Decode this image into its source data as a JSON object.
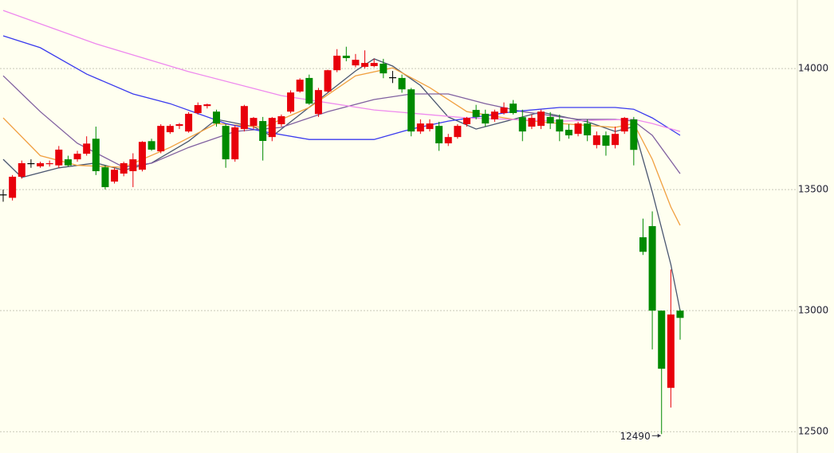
{
  "chart_data": {
    "type": "candlestick",
    "open": [
      13480,
      13466,
      13553,
      13609,
      13596,
      13605,
      13600,
      13625,
      13625,
      13648,
      13710,
      13592,
      13533,
      13566,
      13576,
      13582,
      13700,
      13658,
      13737,
      13763,
      13740,
      13816,
      13845,
      13822,
      13763,
      13625,
      13750,
      13763,
      13783,
      13717,
      13770,
      13822,
      13905,
      13961,
      13812,
      13905,
      13993,
      14053,
      14013,
      14007,
      14010,
      14020,
      13964,
      13961,
      13914,
      13740,
      13750,
      13763,
      13691,
      13717,
      13770,
      13829,
      13813,
      13790,
      13816,
      13855,
      13799,
      13760,
      13763,
      13800,
      13790,
      13747,
      13730,
      13773,
      13684,
      13724,
      13684,
      13740,
      13790,
      13303,
      13349,
      13000,
      12681,
      13000
    ],
    "high": [
      13500,
      13560,
      13620,
      13625,
      13615,
      13620,
      13680,
      13640,
      13660,
      13720,
      13760,
      13600,
      13590,
      13615,
      13650,
      13700,
      13710,
      13770,
      13770,
      13775,
      13820,
      13860,
      13855,
      13830,
      13770,
      13765,
      13850,
      13800,
      13800,
      13800,
      13810,
      13910,
      13960,
      13975,
      13920,
      13995,
      14080,
      14090,
      14060,
      14075,
      14040,
      14040,
      13990,
      13975,
      13920,
      13790,
      13790,
      13780,
      13730,
      13770,
      13800,
      13850,
      13830,
      13830,
      13860,
      13870,
      13830,
      13810,
      13830,
      13820,
      13810,
      13770,
      13780,
      13790,
      13740,
      13740,
      13760,
      13800,
      13800,
      13380,
      13410,
      13000,
      13170,
      13005
    ],
    "low": [
      13450,
      13455,
      13545,
      13590,
      13590,
      13595,
      13590,
      13595,
      13615,
      13640,
      13560,
      13500,
      13525,
      13555,
      13510,
      13575,
      13660,
      13650,
      13730,
      13750,
      13735,
      13810,
      13835,
      13760,
      13590,
      13615,
      13740,
      13750,
      13620,
      13700,
      13760,
      13815,
      13900,
      13850,
      13800,
      13900,
      13985,
      14030,
      14005,
      14000,
      14005,
      13960,
      13940,
      13900,
      13720,
      13730,
      13740,
      13660,
      13680,
      13710,
      13760,
      13790,
      13760,
      13780,
      13810,
      13810,
      13700,
      13750,
      13750,
      13750,
      13700,
      13710,
      13720,
      13700,
      13670,
      13640,
      13670,
      13730,
      13600,
      13230,
      12840,
      12490,
      12600,
      12880
    ],
    "close": [
      13480,
      13553,
      13609,
      13609,
      13609,
      13609,
      13665,
      13600,
      13648,
      13690,
      13576,
      13510,
      13582,
      13609,
      13625,
      13697,
      13665,
      13763,
      13763,
      13770,
      13813,
      13849,
      13852,
      13773,
      13625,
      13757,
      13845,
      13796,
      13701,
      13796,
      13803,
      13901,
      13954,
      13855,
      13911,
      13993,
      14053,
      14043,
      14036,
      14023,
      14023,
      13980,
      13964,
      13914,
      13740,
      13773,
      13773,
      13691,
      13717,
      13763,
      13796,
      13800,
      13773,
      13822,
      13839,
      13816,
      13740,
      13796,
      13822,
      13773,
      13740,
      13724,
      13773,
      13724,
      13724,
      13681,
      13730,
      13796,
      13664,
      13243,
      13000,
      12760,
      12984,
      12970
    ],
    "up_color": "#e8000b",
    "down_color": "#008a00",
    "flat_color": "#000000",
    "series": [
      {
        "color": "#4a5670",
        "x": [
          0,
          2,
          6,
          10,
          13,
          16,
          20,
          23,
          27,
          29,
          31,
          35,
          38,
          40,
          42,
          45,
          48,
          51,
          55,
          58,
          63,
          66,
          68,
          70,
          72,
          73
        ],
        "values": [
          13625,
          13550,
          13590,
          13610,
          13580,
          13610,
          13700,
          13790,
          13760,
          13720,
          13780,
          13900,
          13990,
          14040,
          14010,
          13930,
          13800,
          13750,
          13790,
          13820,
          13780,
          13740,
          13760,
          13490,
          13190,
          13000
        ]
      },
      {
        "color": "#f0a040",
        "x": [
          0,
          4,
          8,
          13,
          18,
          23,
          28,
          33,
          38,
          42,
          46,
          50,
          55,
          60,
          66,
          68,
          70,
          72,
          73
        ],
        "values": [
          13796,
          13640,
          13600,
          13592,
          13674,
          13773,
          13757,
          13839,
          13970,
          14003,
          13921,
          13822,
          13790,
          13773,
          13757,
          13773,
          13625,
          13428,
          13352
        ]
      },
      {
        "color": "#8060a0",
        "x": [
          0,
          4,
          8,
          13,
          16,
          20,
          25,
          30,
          35,
          40,
          44,
          48,
          52,
          56,
          62,
          66,
          68,
          70,
          73
        ],
        "values": [
          13970,
          13822,
          13691,
          13592,
          13609,
          13674,
          13740,
          13757,
          13822,
          13872,
          13895,
          13895,
          13855,
          13822,
          13790,
          13790,
          13783,
          13724,
          13566
        ]
      },
      {
        "color": "#3a3aee",
        "x": [
          0,
          4,
          9,
          14,
          18,
          24,
          28,
          33,
          40,
          44,
          48,
          55,
          60,
          66,
          68,
          70,
          73
        ],
        "values": [
          14135,
          14086,
          13977,
          13895,
          13855,
          13773,
          13740,
          13707,
          13707,
          13750,
          13783,
          13822,
          13839,
          13839,
          13832,
          13796,
          13724
        ]
      },
      {
        "color": "#ee88ee",
        "x": [
          0,
          10,
          20,
          30,
          40,
          50,
          60,
          68,
          70,
          73
        ],
        "values": [
          14240,
          14102,
          13987,
          13888,
          13829,
          13796,
          13783,
          13790,
          13773,
          13740
        ]
      }
    ],
    "annotation_index": 71,
    "ylim": [
      12412,
      14283
    ],
    "yticks": [
      12500,
      13000,
      13500,
      14000
    ],
    "grid": true
  }
}
